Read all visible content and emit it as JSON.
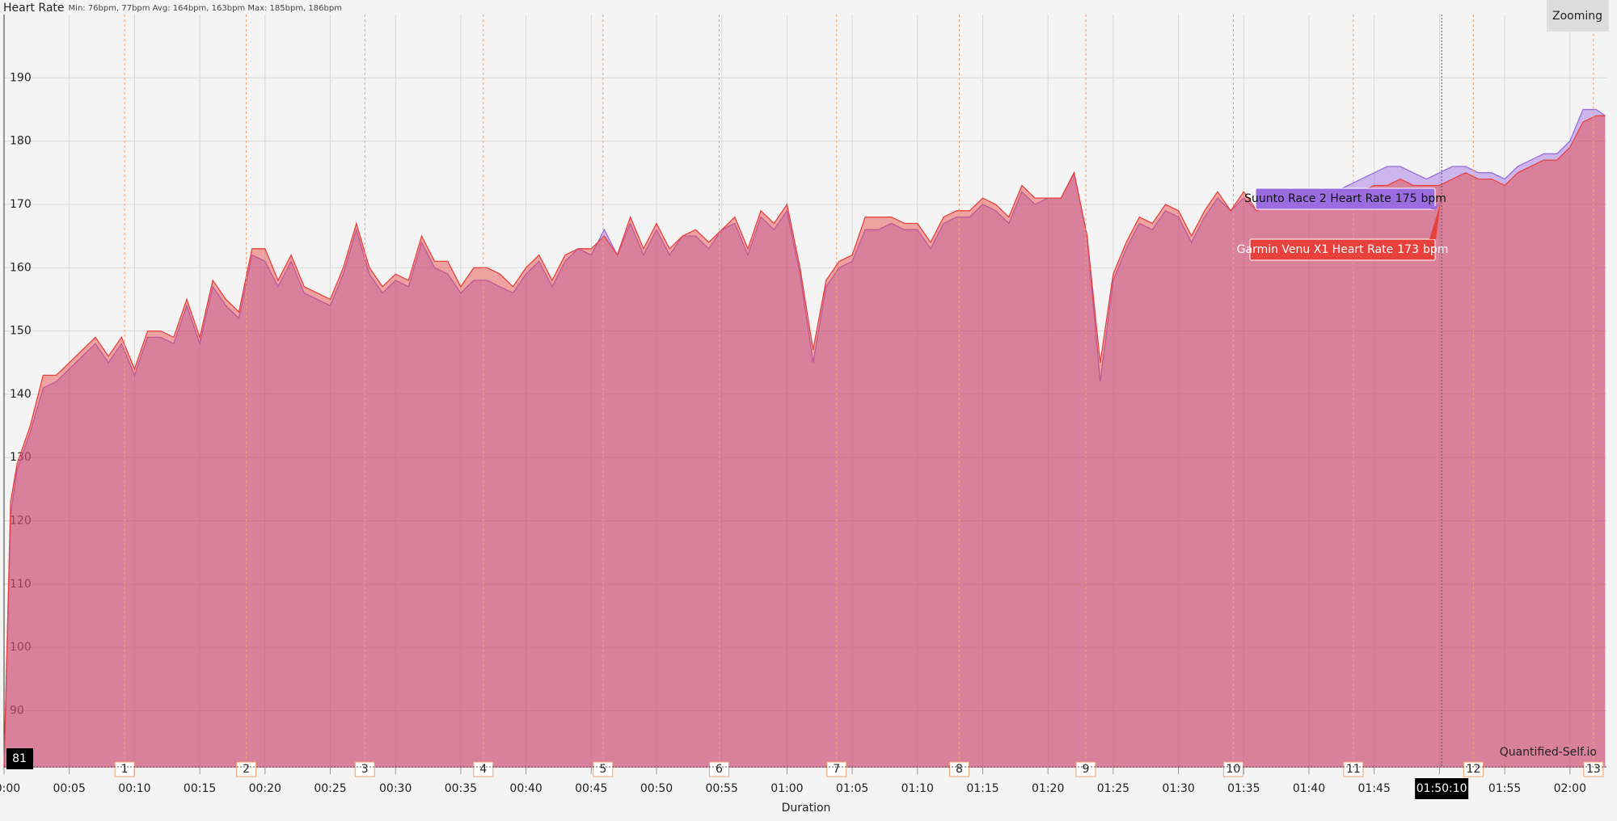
{
  "chart_data": {
    "type": "area",
    "title": "Heart Rate",
    "subtitle": "Min: 76bpm, 77bpm Avg: 164bpm, 163bpm Max: 185bpm, 186bpm",
    "xlabel": "Duration",
    "button": "Zooming",
    "watermark": "Quantified-Self.io",
    "tooltip_unit": "bpm",
    "x": [
      0,
      0.5,
      1,
      2,
      3,
      4,
      5,
      6,
      7,
      8,
      9,
      10,
      11,
      12,
      13,
      14,
      15,
      16,
      17,
      18,
      19,
      20,
      21,
      22,
      23,
      24,
      25,
      26,
      27,
      28,
      29,
      30,
      31,
      32,
      33,
      34,
      35,
      36,
      37,
      38,
      39,
      40,
      41,
      42,
      43,
      44,
      45,
      46,
      47,
      48,
      49,
      50,
      51,
      52,
      53,
      54,
      55,
      56,
      57,
      58,
      59,
      60,
      61,
      62,
      63,
      64,
      65,
      66,
      67,
      68,
      69,
      70,
      71,
      72,
      73,
      74,
      75,
      76,
      77,
      78,
      79,
      80,
      81,
      82,
      83,
      84,
      85,
      86,
      87,
      88,
      89,
      90,
      91,
      92,
      93,
      94,
      95,
      96,
      97,
      98,
      99,
      100,
      101,
      102,
      103,
      104,
      105,
      106,
      107,
      108,
      109,
      110,
      111,
      112,
      113,
      114,
      115,
      116,
      117,
      118,
      119,
      120,
      121,
      122,
      122.7
    ],
    "series": [
      {
        "name": "Suunto Race 2 Heart Rate",
        "color": "#9b6be0",
        "tooltip_value": 175,
        "values": [
          81,
          121,
          128,
          134,
          141,
          142,
          144,
          146,
          148,
          145,
          148,
          143,
          149,
          149,
          148,
          154,
          148,
          157,
          154,
          152,
          162,
          161,
          157,
          161,
          156,
          155,
          154,
          159,
          166,
          159,
          156,
          158,
          157,
          164,
          160,
          159,
          156,
          158,
          158,
          157,
          156,
          159,
          161,
          157,
          161,
          163,
          162,
          166,
          162,
          167,
          162,
          166,
          162,
          165,
          165,
          163,
          166,
          167,
          162,
          168,
          166,
          169,
          159,
          145,
          157,
          160,
          161,
          166,
          166,
          167,
          166,
          166,
          163,
          167,
          168,
          168,
          170,
          169,
          167,
          172,
          170,
          171,
          171,
          175,
          165,
          142,
          158,
          163,
          167,
          166,
          169,
          168,
          164,
          168,
          171,
          169,
          171,
          169,
          170,
          171,
          172,
          172,
          171,
          172,
          173,
          174,
          175,
          176,
          176,
          175,
          174,
          175,
          176,
          176,
          175,
          175,
          174,
          176,
          177,
          178,
          178,
          180,
          185,
          185,
          184
        ]
      },
      {
        "name": "Garmin Venu X1 Heart Rate",
        "color": "#e8413c",
        "tooltip_value": 173,
        "values": [
          81,
          123,
          129,
          135,
          143,
          143,
          145,
          147,
          149,
          146,
          149,
          144,
          150,
          150,
          149,
          155,
          149,
          158,
          155,
          153,
          163,
          163,
          158,
          162,
          157,
          156,
          155,
          160,
          167,
          160,
          157,
          159,
          158,
          165,
          161,
          161,
          157,
          160,
          160,
          159,
          157,
          160,
          162,
          158,
          162,
          163,
          163,
          165,
          162,
          168,
          163,
          167,
          163,
          165,
          166,
          164,
          166,
          168,
          163,
          169,
          167,
          170,
          160,
          147,
          158,
          161,
          162,
          168,
          168,
          168,
          167,
          167,
          164,
          168,
          169,
          169,
          171,
          170,
          168,
          173,
          171,
          171,
          171,
          175,
          165,
          145,
          159,
          164,
          168,
          167,
          170,
          169,
          165,
          169,
          172,
          169,
          172,
          169,
          170,
          170,
          171,
          171,
          170,
          171,
          172,
          172,
          173,
          173,
          174,
          173,
          173,
          173,
          174,
          175,
          174,
          174,
          173,
          175,
          176,
          177,
          177,
          179,
          183,
          184,
          184
        ]
      }
    ],
    "xlim": [
      0,
      122.8
    ],
    "xticks": [
      {
        "value": 0,
        "label": "00:00"
      },
      {
        "value": 5,
        "label": "00:05"
      },
      {
        "value": 10,
        "label": "00:10"
      },
      {
        "value": 15,
        "label": "00:15"
      },
      {
        "value": 20,
        "label": "00:20"
      },
      {
        "value": 25,
        "label": "00:25"
      },
      {
        "value": 30,
        "label": "00:30"
      },
      {
        "value": 35,
        "label": "00:35"
      },
      {
        "value": 40,
        "label": "00:40"
      },
      {
        "value": 45,
        "label": "00:45"
      },
      {
        "value": 50,
        "label": "00:50"
      },
      {
        "value": 55,
        "label": "00:55"
      },
      {
        "value": 60,
        "label": "01:00"
      },
      {
        "value": 65,
        "label": "01:05"
      },
      {
        "value": 70,
        "label": "01:10"
      },
      {
        "value": 75,
        "label": "01:15"
      },
      {
        "value": 80,
        "label": "01:20"
      },
      {
        "value": 85,
        "label": "01:25"
      },
      {
        "value": 90,
        "label": "01:30"
      },
      {
        "value": 95,
        "label": "01:35"
      },
      {
        "value": 100,
        "label": "01:40"
      },
      {
        "value": 105,
        "label": "01:45"
      },
      {
        "value": 110,
        "label": "01:50"
      },
      {
        "value": 115,
        "label": "01:55"
      },
      {
        "value": 120,
        "label": "02:00"
      }
    ],
    "ylim": [
      81,
      200
    ],
    "yticks": [
      90,
      100,
      110,
      120,
      130,
      140,
      150,
      160,
      170,
      180,
      190
    ],
    "grid": true,
    "laps": [
      {
        "label": 1,
        "x": 9.24
      },
      {
        "label": 2,
        "x": 18.56
      },
      {
        "label": 3,
        "x": 27.65
      },
      {
        "label": 4,
        "x": 36.73
      },
      {
        "label": 5,
        "x": 45.9
      },
      {
        "label": 6,
        "x": 54.8
      },
      {
        "label": 7,
        "x": 63.8
      },
      {
        "label": 8,
        "x": 73.2
      },
      {
        "label": 9,
        "x": 82.9
      },
      {
        "label": 10,
        "x": 94.2
      },
      {
        "label": 11,
        "x": 103.4
      },
      {
        "label": 12,
        "x": 112.6
      },
      {
        "label": 13,
        "x": 121.8
      }
    ],
    "crosshair_x": {
      "value": 110.17,
      "label": "01:50:10"
    },
    "crosshair_y": 81
  }
}
